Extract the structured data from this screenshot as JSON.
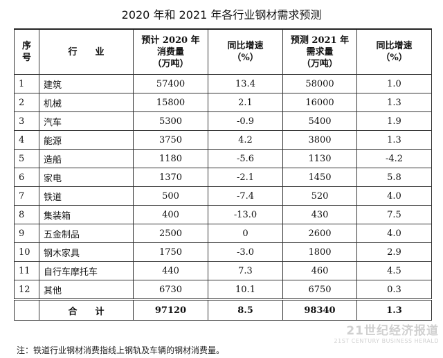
{
  "title": "2020 年和 2021 年各行业钢材需求预测",
  "headers": {
    "idx": "序\n号",
    "industry": "行　　业",
    "cons2020": "预计 2020 年\n消费量\n（万吨）",
    "yoy2020": "同比增速\n（%）",
    "dem2021": "预测 2021 年\n需求量\n（万吨）",
    "yoy2021": "同比增速\n（%）"
  },
  "rows": [
    {
      "idx": "1",
      "name": "建筑",
      "c2020": "57400",
      "g2020": "13.4",
      "d2021": "58000",
      "g2021": "1.0"
    },
    {
      "idx": "2",
      "name": "机械",
      "c2020": "15800",
      "g2020": "2.1",
      "d2021": "16000",
      "g2021": "1.3"
    },
    {
      "idx": "3",
      "name": "汽车",
      "c2020": "5300",
      "g2020": "-0.9",
      "d2021": "5400",
      "g2021": "1.9"
    },
    {
      "idx": "4",
      "name": "能源",
      "c2020": "3750",
      "g2020": "4.2",
      "d2021": "3800",
      "g2021": "1.3"
    },
    {
      "idx": "5",
      "name": "造船",
      "c2020": "1180",
      "g2020": "-5.6",
      "d2021": "1130",
      "g2021": "-4.2"
    },
    {
      "idx": "6",
      "name": "家电",
      "c2020": "1370",
      "g2020": "-2.1",
      "d2021": "1450",
      "g2021": "5.8"
    },
    {
      "idx": "7",
      "name": "铁道",
      "c2020": "500",
      "g2020": "-7.4",
      "d2021": "520",
      "g2021": "4.0"
    },
    {
      "idx": "8",
      "name": "集装箱",
      "c2020": "400",
      "g2020": "-13.0",
      "d2021": "430",
      "g2021": "7.5"
    },
    {
      "idx": "9",
      "name": "五金制品",
      "c2020": "2500",
      "g2020": "0",
      "d2021": "2600",
      "g2021": "4.0"
    },
    {
      "idx": "10",
      "name": "钢木家具",
      "c2020": "1750",
      "g2020": "-3.0",
      "d2021": "1800",
      "g2021": "2.9"
    },
    {
      "idx": "11",
      "name": "自行车摩托车",
      "c2020": "440",
      "g2020": "7.3",
      "d2021": "460",
      "g2021": "4.5"
    },
    {
      "idx": "12",
      "name": "其他",
      "c2020": "6730",
      "g2020": "10.1",
      "d2021": "6750",
      "g2021": "0.3"
    }
  ],
  "total": {
    "label": "合　　计",
    "c2020": "97120",
    "g2020": "8.5",
    "d2021": "98340",
    "g2021": "1.3"
  },
  "note": "注：铁道行业钢材消费指线上钢轨及车辆的钢材消费量。",
  "watermark": {
    "cn": "21世纪经济报道",
    "en": "21ST CENTURY BUSINESS HERALD"
  }
}
